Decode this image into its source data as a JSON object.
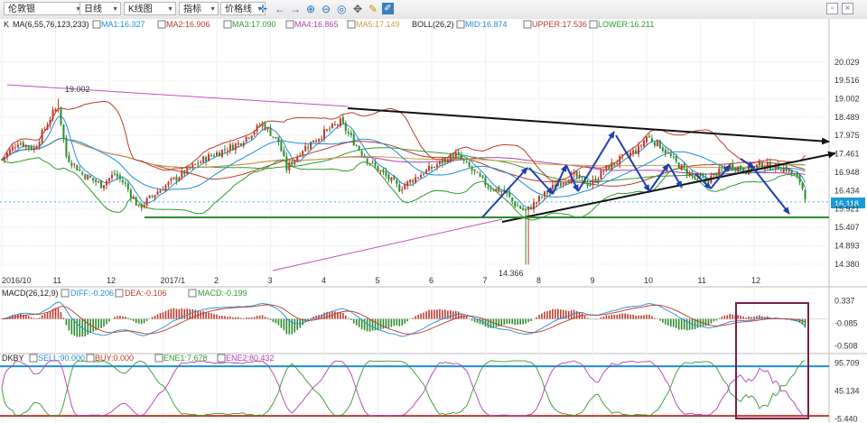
{
  "toolbar": {
    "instrument": "伦敦银",
    "period": "日线",
    "chart_type": "K线图",
    "indicator": "指标",
    "price_line": "价格线"
  },
  "legends": {
    "main": {
      "k": "K",
      "ma_params": "MA(6,55,76,123,233)",
      "ma1": "MA1:16.327",
      "ma2": "MA2:16.906",
      "ma3": "MA3:17.090",
      "ma4": "MA4:16.865",
      "ma5": "MA5:17.149",
      "boll": "BOLL(26,2)",
      "mid": "MID:16.874",
      "upper": "UPPER:17.536",
      "lower": "LOWER:16.211"
    },
    "macd": {
      "params": "MACD(26,12,9)",
      "diff": "DIFF:-0.206",
      "dea": "DEA:-0.106",
      "macd": "MACD:-0.199"
    },
    "dkby": {
      "name": "DKBY",
      "sell": "SELL:90.000",
      "buy": "BUY:0.000",
      "ene1": "ENE1:7.678",
      "ene2": "ENE2:80.432"
    }
  },
  "colors": {
    "ma1": "#1f8fd8",
    "ma2": "#c0392b",
    "ma3": "#2e9c2e",
    "ma4": "#b03fb0",
    "ma5": "#c8a040",
    "mid": "#1f8fd8",
    "upper": "#c0392b",
    "lower": "#2e9c2e",
    "up_candle": "#c0392b",
    "down_candle": "#2e8b2e",
    "trend_black": "#111111",
    "trend_green": "#2e8b2e",
    "trend_magenta": "#c050c0",
    "arrow_blue": "#1e3fae",
    "annotation_box": "#7a1f4a",
    "price_tag": "#1a9bd7"
  },
  "chart_data": [
    {
      "type": "candlestick",
      "title": "伦敦银 日线",
      "xlabel": "",
      "ylabel": "",
      "x_ticks": [
        "2016/10",
        "11",
        "12",
        "2017/1",
        "2",
        "3",
        "4",
        "5",
        "6",
        "7",
        "8",
        "9",
        "10",
        "11",
        "12"
      ],
      "y_ticks": [
        20.029,
        19.516,
        19.002,
        18.489,
        17.975,
        17.461,
        16.948,
        16.434,
        15.921,
        15.407,
        14.893,
        14.38
      ],
      "ylim": [
        14.2,
        20.3
      ],
      "current_price": 16.118,
      "annotations": [
        {
          "text": "19.002",
          "value": 19.002,
          "date": "2016/11"
        },
        {
          "text": "14.366",
          "value": 14.366,
          "date": "2017/7"
        }
      ],
      "price_path": [
        {
          "m": 0.0,
          "v": 17.3
        },
        {
          "m": 0.3,
          "v": 17.8
        },
        {
          "m": 0.6,
          "v": 17.6
        },
        {
          "m": 0.95,
          "v": 18.6
        },
        {
          "m": 1.05,
          "v": 18.8
        },
        {
          "m": 1.2,
          "v": 17.4
        },
        {
          "m": 1.5,
          "v": 16.9
        },
        {
          "m": 1.85,
          "v": 16.6
        },
        {
          "m": 2.1,
          "v": 16.9
        },
        {
          "m": 2.3,
          "v": 16.6
        },
        {
          "m": 2.55,
          "v": 15.95
        },
        {
          "m": 2.85,
          "v": 16.35
        },
        {
          "m": 3.3,
          "v": 16.85
        },
        {
          "m": 3.8,
          "v": 17.35
        },
        {
          "m": 4.4,
          "v": 17.75
        },
        {
          "m": 4.85,
          "v": 18.3
        },
        {
          "m": 5.15,
          "v": 17.8
        },
        {
          "m": 5.3,
          "v": 17.05
        },
        {
          "m": 5.6,
          "v": 17.6
        },
        {
          "m": 6.0,
          "v": 18.05
        },
        {
          "m": 6.3,
          "v": 18.35
        },
        {
          "m": 6.55,
          "v": 17.8
        },
        {
          "m": 6.8,
          "v": 17.3
        },
        {
          "m": 7.1,
          "v": 16.9
        },
        {
          "m": 7.4,
          "v": 16.5
        },
        {
          "m": 7.75,
          "v": 16.85
        },
        {
          "m": 8.15,
          "v": 17.2
        },
        {
          "m": 8.45,
          "v": 17.45
        },
        {
          "m": 8.75,
          "v": 17.0
        },
        {
          "m": 9.05,
          "v": 16.55
        },
        {
          "m": 9.35,
          "v": 16.4
        },
        {
          "m": 9.55,
          "v": 16.05
        },
        {
          "m": 9.75,
          "v": 15.85
        },
        {
          "m": 10.0,
          "v": 16.2
        },
        {
          "m": 10.35,
          "v": 16.65
        },
        {
          "m": 10.65,
          "v": 16.85
        },
        {
          "m": 10.95,
          "v": 16.6
        },
        {
          "m": 11.2,
          "v": 17.0
        },
        {
          "m": 11.5,
          "v": 17.3
        },
        {
          "m": 11.85,
          "v": 17.6
        },
        {
          "m": 12.0,
          "v": 17.95
        },
        {
          "m": 12.25,
          "v": 17.7
        },
        {
          "m": 12.55,
          "v": 17.2
        },
        {
          "m": 12.85,
          "v": 16.85
        },
        {
          "m": 13.1,
          "v": 16.7
        },
        {
          "m": 13.35,
          "v": 16.95
        },
        {
          "m": 13.55,
          "v": 17.15
        },
        {
          "m": 13.85,
          "v": 17.0
        },
        {
          "m": 14.1,
          "v": 17.15
        },
        {
          "m": 14.4,
          "v": 17.1
        },
        {
          "m": 14.6,
          "v": 17.05
        },
        {
          "m": 14.85,
          "v": 16.7
        },
        {
          "m": 15.0,
          "v": 16.1
        }
      ]
    },
    {
      "type": "bar",
      "title": "MACD(26,12,9)",
      "y_ticks": [
        0.337,
        -0.085,
        -0.508
      ],
      "ylim": [
        -0.55,
        0.4
      ]
    },
    {
      "type": "line",
      "title": "DKBY",
      "y_ticks": [
        95.709,
        45.134,
        -5.44
      ],
      "ylim": [
        -8,
        100
      ],
      "sell_level": 90.0,
      "buy_level": 0.0
    }
  ]
}
